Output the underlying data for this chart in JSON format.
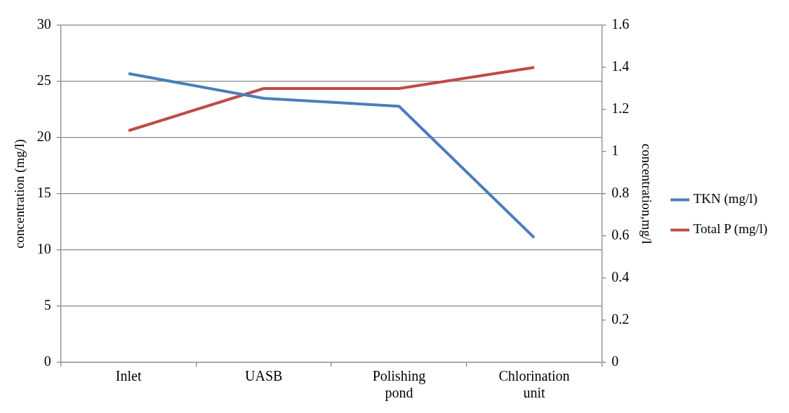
{
  "chart_data": {
    "type": "line",
    "categories": [
      "Inlet",
      "UASB",
      "Polishing pond",
      "Chlorination unit"
    ],
    "ylabel": "concentration (mg/l)",
    "y2label": "concentration,mg/l",
    "series": [
      {
        "name": "TKN (mg/l)",
        "color": "#4a7ebb",
        "values": [
          25.7,
          23.5,
          22.8,
          11.1
        ]
      },
      {
        "name": "Total P (mg/l)",
        "color": "#be4b48",
        "values": [
          1.1,
          1.3,
          1.3,
          1.4
        ],
        "axis": "y2"
      }
    ],
    "ylim": [
      0,
      30
    ],
    "yticks": [
      0,
      5,
      10,
      15,
      20,
      25,
      30
    ],
    "y2lim": [
      0,
      1.6
    ],
    "y2ticks": [
      0,
      0.2,
      0.4,
      0.6,
      0.8,
      1,
      1.2,
      1.4,
      1.6
    ],
    "grid": "y",
    "legend": "right",
    "marker": "none",
    "line_style": "solid"
  }
}
